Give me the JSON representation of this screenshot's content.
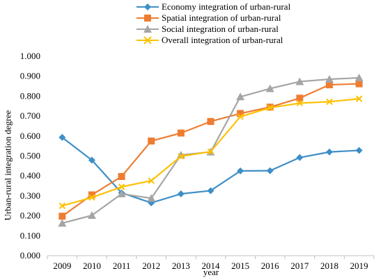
{
  "chart_data": {
    "type": "line",
    "ylabel": "Urban-rural integration degree",
    "xlabel": "year",
    "x": [
      "2009",
      "2010",
      "2011",
      "2012",
      "2013",
      "2014",
      "2015",
      "2016",
      "2017",
      "2018",
      "2019"
    ],
    "ylim": [
      0,
      1.0
    ],
    "yticks": [
      "0.000",
      "0.100",
      "0.200",
      "0.300",
      "0.400",
      "0.500",
      "0.600",
      "0.700",
      "0.800",
      "0.900",
      "1.000"
    ],
    "grid": false,
    "legend_position": "top",
    "series": [
      {
        "name": "Economy integration of urban-rural",
        "color": "#3d8fc6",
        "marker": "diamond",
        "values": [
          0.593,
          0.479,
          0.315,
          0.265,
          0.31,
          0.326,
          0.425,
          0.426,
          0.492,
          0.52,
          0.528
        ]
      },
      {
        "name": "Spatial integration of urban-rural",
        "color": "#ee7d31",
        "marker": "square",
        "values": [
          0.198,
          0.305,
          0.397,
          0.575,
          0.615,
          0.673,
          0.713,
          0.745,
          0.79,
          0.857,
          0.862
        ]
      },
      {
        "name": "Social integration of urban-rural",
        "color": "#a5a5a5",
        "marker": "triangle",
        "values": [
          0.163,
          0.202,
          0.31,
          0.288,
          0.505,
          0.52,
          0.797,
          0.838,
          0.873,
          0.885,
          0.892
        ]
      },
      {
        "name": "Overall integration of urban-rural",
        "color": "#fdc100",
        "marker": "x",
        "values": [
          0.25,
          0.292,
          0.345,
          0.376,
          0.498,
          0.522,
          0.697,
          0.742,
          0.765,
          0.772,
          0.787
        ]
      }
    ]
  }
}
